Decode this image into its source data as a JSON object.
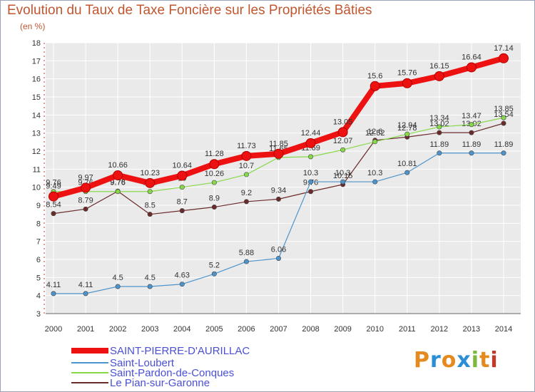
{
  "title": "Evolution du Taux de Taxe Foncière sur les Propriétés Bâties",
  "unit_label": "(en %)",
  "logo": {
    "letters": [
      "P",
      "r",
      "o",
      "x",
      "i",
      "t",
      "i"
    ],
    "colors": [
      "#e58a1f",
      "#2a8fd6",
      "#e58a1f",
      "#2a8fd6",
      "#7cb83a",
      "#e58a1f",
      "#c0392b"
    ]
  },
  "chart_data": {
    "type": "line",
    "title": "Evolution du Taux de Taxe Foncière sur les Propriétés Bâties",
    "ylabel": "(en %)",
    "xlabel": "",
    "ylim": [
      3,
      18
    ],
    "yticks": [
      3,
      4,
      5,
      6,
      7,
      8,
      9,
      10,
      11,
      12,
      13,
      14,
      15,
      16,
      17,
      18
    ],
    "x": [
      "2000",
      "2001",
      "2002",
      "2003",
      "2004",
      "2005",
      "2006",
      "2007",
      "2008",
      "2009",
      "2010",
      "2011",
      "2012",
      "2013",
      "2014"
    ],
    "series": [
      {
        "name": "SAINT-PIERRE-D'AURILLAC",
        "color": "#ee1111",
        "values": [
          9.49,
          9.97,
          10.66,
          10.23,
          10.64,
          11.28,
          11.73,
          11.85,
          12.44,
          13.05,
          15.6,
          15.76,
          16.15,
          16.64,
          17.14
        ],
        "labels": [
          "9.49",
          "9.97",
          "10.66",
          "10.23",
          "10.64",
          "11.28",
          "11.73",
          "11.85",
          "12.44",
          "13.05",
          "15.6",
          "15.76",
          "16.15",
          "16.64",
          "17.14"
        ]
      },
      {
        "name": "Saint-Loubert",
        "color": "#4d94cc",
        "values": [
          4.11,
          4.11,
          4.5,
          4.5,
          4.63,
          5.2,
          5.88,
          6.06,
          10.3,
          10.3,
          10.3,
          10.81,
          11.89,
          11.89,
          11.89
        ],
        "labels": [
          "4.11",
          "4.11",
          "4.5",
          "4.5",
          "4.63",
          "5.2",
          "5.88",
          "6.06",
          "10.3",
          "10.3",
          "10.3",
          "10.81",
          "11.89",
          "11.89",
          "11.89"
        ]
      },
      {
        "name": "Saint-Pardon-de-Conques",
        "color": "#88d94a",
        "values": [
          9.76,
          9.76,
          9.76,
          9.76,
          10,
          10.26,
          10.7,
          11.65,
          11.69,
          12.07,
          12.52,
          12.94,
          13.34,
          13.47,
          13.85
        ],
        "labels": [
          "9.76",
          "9.76",
          "9.76",
          "9.76",
          "10",
          "10.26",
          "10.7",
          "11.65",
          "11.69",
          "12.07",
          "12.52",
          "12.94",
          "13.34",
          "13.47",
          "13.85"
        ]
      },
      {
        "name": "Le Pian-sur-Garonne",
        "color": "#6b2b2b",
        "values": [
          8.54,
          8.79,
          9.78,
          8.5,
          8.7,
          8.9,
          9.2,
          9.34,
          9.76,
          10.15,
          12.6,
          12.78,
          13.02,
          13.02,
          13.54
        ],
        "labels": [
          "8.54",
          "8.79",
          "9.78",
          "8.5",
          "8.7",
          "8.9",
          "9.2",
          "9.34",
          "9.76",
          "10.15",
          "12.6",
          "12.78",
          "13.02",
          "13.02",
          "13.54"
        ]
      }
    ],
    "legend_position": "bottom-left",
    "grid": true
  }
}
